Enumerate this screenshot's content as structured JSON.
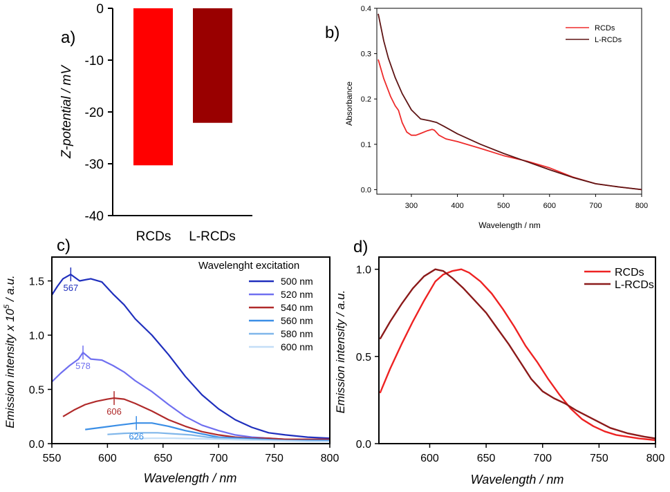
{
  "chart_data": [
    {
      "panel": "a)",
      "type": "bar",
      "categories": [
        "RCDs",
        "L-RCDs"
      ],
      "values": [
        -30.3,
        -22.1
      ],
      "colors": [
        "#ff0000",
        "#990000"
      ],
      "ylabel": "Z-potential / mV",
      "ylim": [
        -40,
        0
      ],
      "yticks": [
        "0",
        "-10",
        "-20",
        "-30",
        "-40"
      ],
      "grid": false
    },
    {
      "panel": "b)",
      "type": "line",
      "xlabel": "Wavelength / nm",
      "ylabel": "Absorbance",
      "xlim": [
        225,
        800
      ],
      "ylim": [
        -0.01,
        0.4
      ],
      "xticks": [
        "300",
        "400",
        "500",
        "600",
        "700",
        "800"
      ],
      "yticks": [
        "0.0",
        "0.1",
        "0.2",
        "0.3",
        "0.4"
      ],
      "legend": "top-right",
      "series": [
        {
          "name": "RCDs",
          "color": "#ee2a2a",
          "x": [
            228,
            240,
            255,
            265,
            272,
            280,
            290,
            300,
            310,
            320,
            335,
            345,
            350,
            360,
            375,
            400,
            450,
            500,
            550,
            600,
            650,
            700,
            750,
            800
          ],
          "y": [
            0.287,
            0.245,
            0.205,
            0.185,
            0.175,
            0.148,
            0.127,
            0.12,
            0.12,
            0.124,
            0.13,
            0.133,
            0.131,
            0.12,
            0.112,
            0.106,
            0.091,
            0.075,
            0.063,
            0.048,
            0.028,
            0.013,
            0.006,
            0.0
          ]
        },
        {
          "name": "L-RCDs",
          "color": "#5e1414",
          "x": [
            228,
            240,
            250,
            265,
            280,
            300,
            320,
            340,
            355,
            370,
            400,
            450,
            500,
            550,
            600,
            650,
            700,
            750,
            800
          ],
          "y": [
            0.388,
            0.328,
            0.29,
            0.247,
            0.212,
            0.176,
            0.156,
            0.152,
            0.148,
            0.14,
            0.123,
            0.1,
            0.08,
            0.062,
            0.044,
            0.027,
            0.013,
            0.006,
            0.0
          ]
        }
      ]
    },
    {
      "panel": "c)",
      "type": "line",
      "xlabel": "Wavelength / nm",
      "ylabel": "Emission intensity x 10^5 / a.u.",
      "xlim": [
        550,
        800
      ],
      "ylim": [
        0,
        1.72
      ],
      "xticks": [
        "550",
        "600",
        "650",
        "700",
        "750",
        "800"
      ],
      "yticks": [
        "0.0",
        "0.5",
        "1.0",
        "1.5"
      ],
      "legend_title": "Wavelenght excitation",
      "legend": "top-right",
      "annotations": [
        "567",
        "578",
        "606",
        "626"
      ],
      "series": [
        {
          "name": "500 nm",
          "color": "#1f2fbd",
          "x": [
            550,
            555,
            560,
            567,
            575,
            585,
            595,
            605,
            615,
            625,
            640,
            655,
            670,
            685,
            700,
            715,
            730,
            745,
            760,
            780,
            800
          ],
          "y": [
            1.37,
            1.45,
            1.52,
            1.56,
            1.5,
            1.52,
            1.49,
            1.38,
            1.28,
            1.15,
            1.0,
            0.82,
            0.62,
            0.45,
            0.32,
            0.22,
            0.15,
            0.1,
            0.08,
            0.06,
            0.05
          ]
        },
        {
          "name": "520 nm",
          "color": "#6f6ff0",
          "x": [
            550,
            558,
            566,
            574,
            578,
            585,
            595,
            605,
            615,
            625,
            640,
            655,
            670,
            685,
            700,
            715,
            730,
            745,
            760,
            780,
            800
          ],
          "y": [
            0.57,
            0.65,
            0.72,
            0.78,
            0.84,
            0.78,
            0.77,
            0.72,
            0.66,
            0.58,
            0.48,
            0.36,
            0.25,
            0.17,
            0.12,
            0.08,
            0.06,
            0.05,
            0.04,
            0.03,
            0.03
          ]
        },
        {
          "name": "540 nm",
          "color": "#b02a2a",
          "x": [
            560,
            570,
            580,
            590,
            600,
            606,
            615,
            625,
            640,
            655,
            670,
            685,
            700,
            715,
            730,
            745,
            760,
            780,
            800
          ],
          "y": [
            0.25,
            0.31,
            0.36,
            0.39,
            0.41,
            0.42,
            0.41,
            0.37,
            0.3,
            0.22,
            0.16,
            0.11,
            0.08,
            0.06,
            0.05,
            0.05,
            0.04,
            0.04,
            0.04
          ]
        },
        {
          "name": "560 nm",
          "color": "#3a8ee6",
          "x": [
            580,
            595,
            610,
            626,
            640,
            655,
            670,
            685,
            700,
            720,
            740,
            760,
            780,
            800
          ],
          "y": [
            0.13,
            0.15,
            0.17,
            0.19,
            0.19,
            0.16,
            0.12,
            0.09,
            0.06,
            0.05,
            0.04,
            0.03,
            0.03,
            0.03
          ]
        },
        {
          "name": "580 nm",
          "color": "#7fb6ea",
          "x": [
            600,
            615,
            630,
            645,
            660,
            675,
            690,
            710,
            730,
            750,
            770,
            800
          ],
          "y": [
            0.085,
            0.095,
            0.1,
            0.1,
            0.09,
            0.08,
            0.06,
            0.045,
            0.035,
            0.03,
            0.025,
            0.02
          ]
        },
        {
          "name": "600 nm",
          "color": "#c3def7",
          "x": [
            620,
            640,
            660,
            680,
            700,
            720,
            740,
            760,
            780,
            800
          ],
          "y": [
            0.045,
            0.05,
            0.05,
            0.045,
            0.04,
            0.035,
            0.03,
            0.025,
            0.02,
            0.02
          ]
        }
      ]
    },
    {
      "panel": "d)",
      "type": "line",
      "xlabel": "Wavelength / nm",
      "ylabel": "Emission intensity / a.u.",
      "xlim": [
        555,
        800
      ],
      "ylim": [
        0,
        1.07
      ],
      "xticks": [
        "600",
        "650",
        "700",
        "750",
        "800"
      ],
      "yticks": [
        "0.0",
        "0.5",
        "1.0"
      ],
      "legend": "top-right",
      "series": [
        {
          "name": "RCDs",
          "color": "#ee2222",
          "x": [
            556,
            565,
            575,
            585,
            595,
            605,
            612,
            620,
            628,
            635,
            645,
            655,
            665,
            675,
            685,
            695,
            705,
            715,
            725,
            735,
            745,
            755,
            765,
            775,
            785,
            800
          ],
          "y": [
            0.29,
            0.43,
            0.57,
            0.7,
            0.82,
            0.93,
            0.97,
            0.99,
            1.0,
            0.98,
            0.93,
            0.86,
            0.77,
            0.67,
            0.56,
            0.47,
            0.37,
            0.28,
            0.2,
            0.14,
            0.1,
            0.07,
            0.05,
            0.04,
            0.03,
            0.02
          ]
        },
        {
          "name": "L-RCDs",
          "color": "#8b1a1a",
          "x": [
            556,
            565,
            575,
            585,
            595,
            605,
            612,
            620,
            630,
            640,
            650,
            660,
            670,
            680,
            690,
            700,
            710,
            720,
            730,
            745,
            760,
            775,
            790,
            800
          ],
          "y": [
            0.6,
            0.7,
            0.8,
            0.89,
            0.96,
            1.0,
            0.99,
            0.95,
            0.89,
            0.82,
            0.75,
            0.66,
            0.57,
            0.47,
            0.37,
            0.3,
            0.26,
            0.23,
            0.19,
            0.14,
            0.09,
            0.06,
            0.04,
            0.03
          ]
        }
      ]
    }
  ]
}
